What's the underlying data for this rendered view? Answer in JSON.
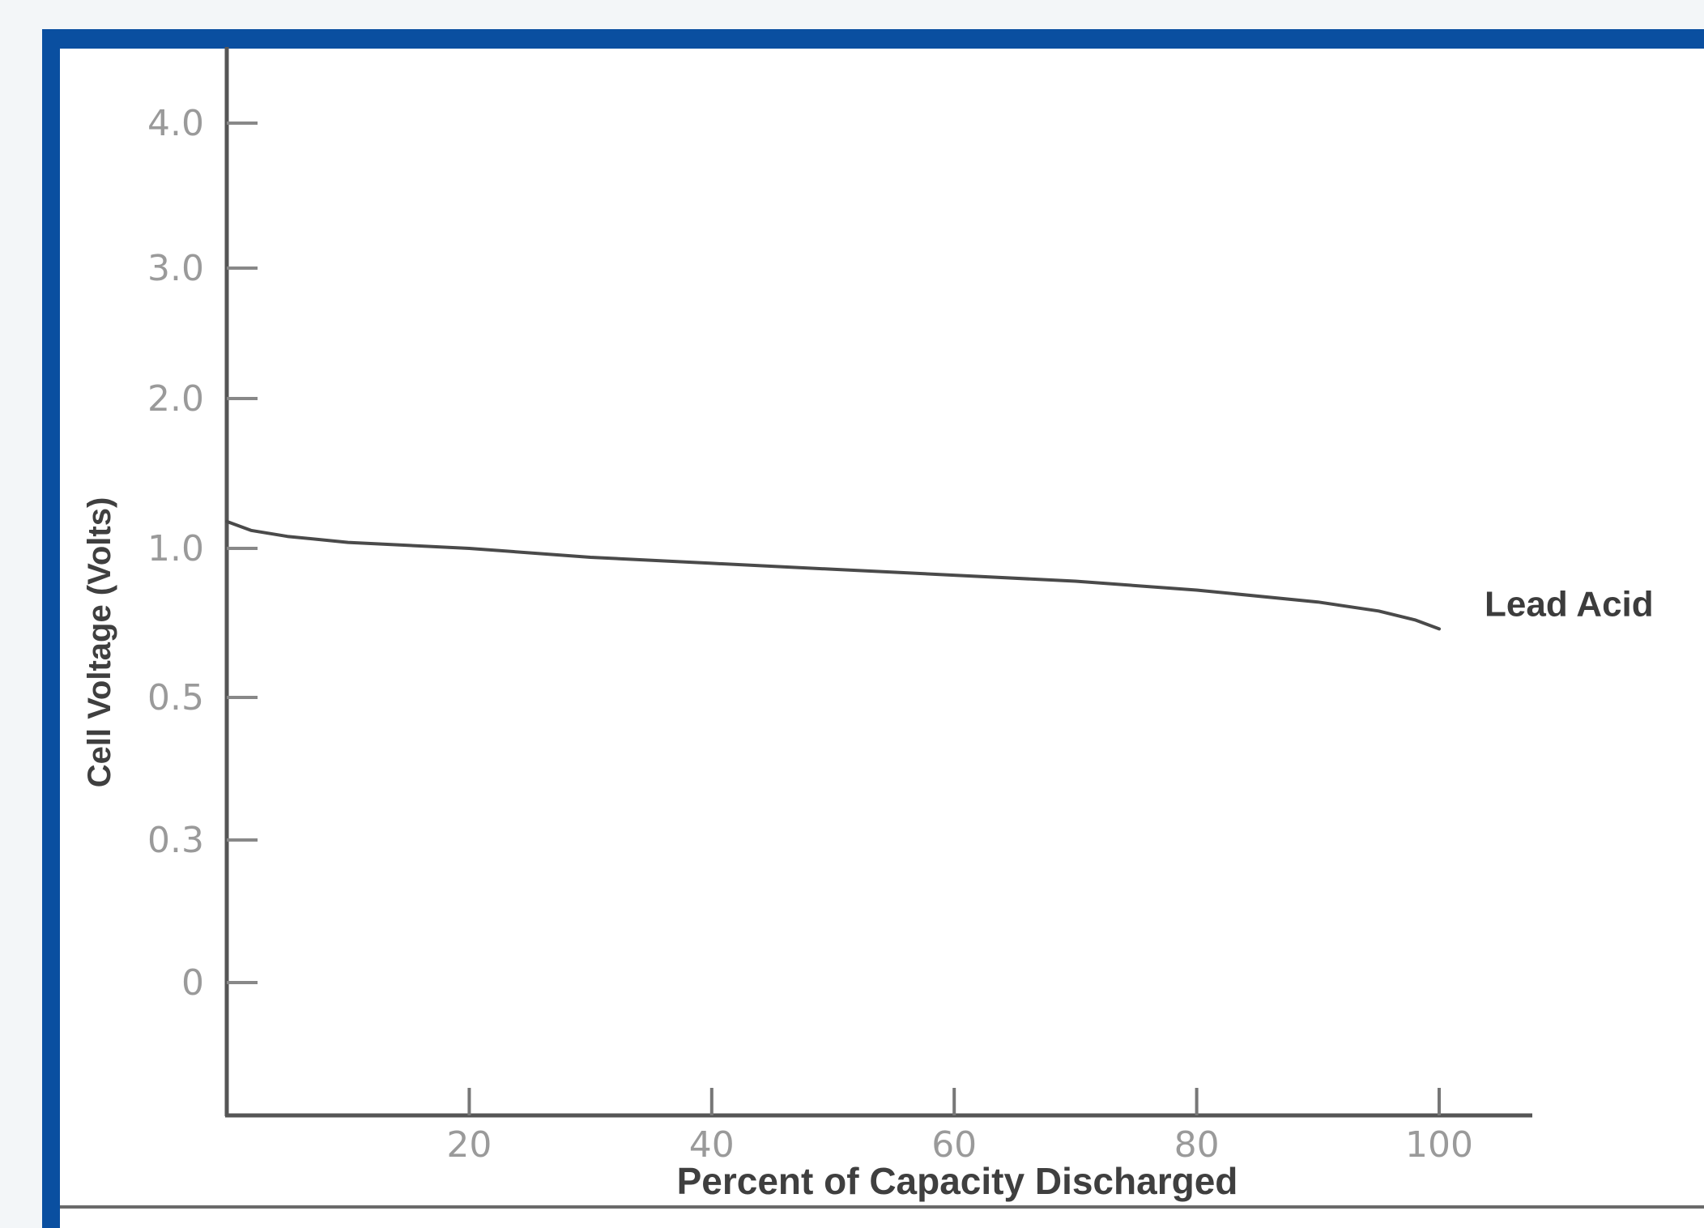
{
  "colors": {
    "frame": "#0a4fa0",
    "axis": "#555555",
    "series_line": "#4a4a4a",
    "tick_label": "#9a9a9a",
    "background": "#ffffff"
  },
  "chart_data": {
    "type": "line",
    "xlabel": "Percent of Capacity Discharged",
    "ylabel": "Cell Voltage (Volts)",
    "x_ticks": [
      "20",
      "40",
      "60",
      "80",
      "100"
    ],
    "y_ticks": [
      "0",
      "0.3",
      "0.5",
      "1.0",
      "2.0",
      "3.0",
      "4.0"
    ],
    "y_tick_values": [
      0,
      0.3,
      0.5,
      1.0,
      2.0,
      3.0,
      4.0
    ],
    "xlim": [
      0,
      107
    ],
    "ylim": [
      -0.6,
      4.3
    ],
    "grid": false,
    "series": [
      {
        "name": "Lead Acid",
        "x": [
          0,
          2,
          5,
          10,
          20,
          30,
          40,
          50,
          60,
          70,
          80,
          90,
          95,
          98,
          100
        ],
        "y": [
          1.18,
          1.12,
          1.08,
          1.04,
          1.0,
          0.97,
          0.95,
          0.93,
          0.91,
          0.89,
          0.86,
          0.82,
          0.79,
          0.76,
          0.73
        ]
      }
    ]
  }
}
